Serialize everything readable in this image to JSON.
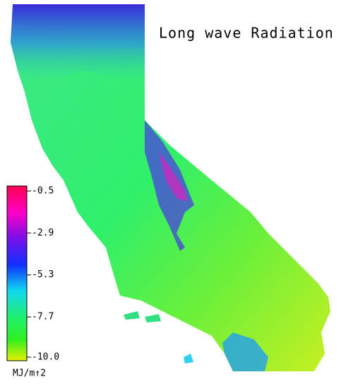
{
  "title": "Long wave Radiation",
  "colorbar": {
    "range": [
      -10,
      -0.5
    ],
    "ticks": [
      -0.5,
      -2.9,
      -5.3,
      -7.7,
      {
        "value": -10,
        "label": "-10.0"
      }
    ],
    "unit": "MJ/m↑2"
  }
}
